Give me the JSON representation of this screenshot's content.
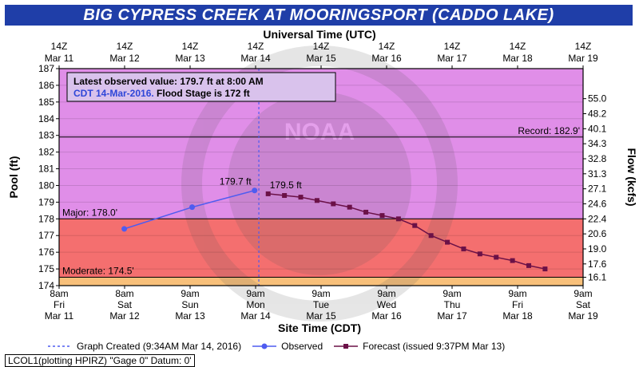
{
  "title": "BIG CYPRESS CREEK AT MOORINGSPORT (CADDO LAKE)",
  "legend": {
    "graph_created": "Graph Created (9:34AM Mar 14, 2016)",
    "observed": "Observed",
    "forecast": "Forecast (issued 9:37PM Mar 13)"
  },
  "footer": "LCOL1(plotting HPIRZ) \"Gage 0\" Datum: 0'",
  "colors": {
    "title_bg": "#1f3ea8",
    "upper_band": "#e08ee8",
    "major_band": "#f46f6f",
    "moderate_band": "#f8c07a",
    "observed": "#4f5cf0",
    "forecast": "#6b1147"
  },
  "chart_data": {
    "type": "line",
    "top_axis_label": "Universal Time (UTC)",
    "xlabel": "Site Time (CDT)",
    "ylabel": "Pool (ft)",
    "y2label": "Flow (kcfs)",
    "ylim": [
      174,
      187
    ],
    "xlim": [
      "2016-03-11T08:00",
      "2016-03-19T09:00"
    ],
    "top_ticks": [
      [
        "14Z",
        "Mar 11"
      ],
      [
        "14Z",
        "Mar 12"
      ],
      [
        "14Z",
        "Mar 13"
      ],
      [
        "14Z",
        "Mar 14"
      ],
      [
        "14Z",
        "Mar 15"
      ],
      [
        "14Z",
        "Mar 16"
      ],
      [
        "14Z",
        "Mar 17"
      ],
      [
        "14Z",
        "Mar 18"
      ],
      [
        "14Z",
        "Mar 19"
      ]
    ],
    "bottom_ticks": [
      [
        "8am",
        "Fri",
        "Mar 11"
      ],
      [
        "8am",
        "Sat",
        "Mar 12"
      ],
      [
        "9am",
        "Sun",
        "Mar 13"
      ],
      [
        "9am",
        "Mon",
        "Mar 14"
      ],
      [
        "9am",
        "Tue",
        "Mar 15"
      ],
      [
        "9am",
        "Wed",
        "Mar 16"
      ],
      [
        "9am",
        "Thu",
        "Mar 17"
      ],
      [
        "9am",
        "Fri",
        "Mar 18"
      ],
      [
        "9am",
        "Sat",
        "Mar 19"
      ]
    ],
    "y_ticks": [
      174,
      175,
      176,
      177,
      178,
      179,
      180,
      181,
      182,
      183,
      184,
      185,
      186,
      187
    ],
    "flow_ticks": [
      {
        "stage": 174.5,
        "label": "16.1"
      },
      {
        "stage": 175.3,
        "label": "17.6"
      },
      {
        "stage": 176.2,
        "label": "19.0"
      },
      {
        "stage": 177.1,
        "label": "20.6"
      },
      {
        "stage": 178.0,
        "label": "22.4"
      },
      {
        "stage": 178.9,
        "label": "24.6"
      },
      {
        "stage": 179.8,
        "label": "27.1"
      },
      {
        "stage": 180.7,
        "label": "31.3"
      },
      {
        "stage": 181.6,
        "label": "32.8"
      },
      {
        "stage": 182.5,
        "label": "34.3"
      },
      {
        "stage": 183.4,
        "label": "40.1"
      },
      {
        "stage": 184.3,
        "label": "48.2"
      },
      {
        "stage": 185.2,
        "label": "55.0"
      }
    ],
    "thresholds": [
      {
        "name": "Record",
        "value": 182.9,
        "label": "Record: 182.9'"
      },
      {
        "name": "Major",
        "value": 178.0,
        "label": "Major: 178.0'"
      },
      {
        "name": "Moderate",
        "value": 174.5,
        "label": "Moderate: 174.5'"
      }
    ],
    "observed": {
      "name": "Observed",
      "x": [
        "2016-03-12T08:00",
        "2016-03-13T09:00",
        "2016-03-14T08:00"
      ],
      "y": [
        177.4,
        178.7,
        179.7
      ]
    },
    "forecast": {
      "name": "Forecast (issued 9:37PM Mar 13)",
      "x": [
        "2016-03-14T13:00",
        "2016-03-14T19:00",
        "2016-03-15T01:00",
        "2016-03-15T07:00",
        "2016-03-15T13:00",
        "2016-03-15T19:00",
        "2016-03-16T01:00",
        "2016-03-16T07:00",
        "2016-03-16T13:00",
        "2016-03-16T19:00",
        "2016-03-17T01:00",
        "2016-03-17T07:00",
        "2016-03-17T13:00",
        "2016-03-17T19:00",
        "2016-03-18T01:00",
        "2016-03-18T07:00",
        "2016-03-18T13:00",
        "2016-03-18T19:00"
      ],
      "y": [
        179.5,
        179.4,
        179.3,
        179.1,
        178.9,
        178.7,
        178.4,
        178.2,
        178.0,
        177.6,
        177.0,
        176.6,
        176.2,
        175.9,
        175.7,
        175.5,
        175.2,
        175.0
      ]
    },
    "annotations": {
      "observed_peak": "179.7 ft",
      "forecast_peak": "179.5 ft",
      "latest_line1": "Latest observed value: 179.7 ft at 8:00 AM",
      "latest_line2a": "CDT 14-Mar-2016.",
      "latest_line2b": "Flood Stage is 172 ft"
    },
    "created_time": "2016-03-14T09:34",
    "watermark": "NOAA"
  }
}
